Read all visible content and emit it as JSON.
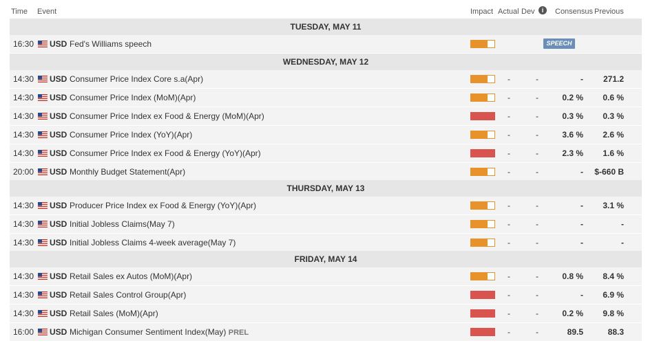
{
  "header": {
    "time": "Time",
    "event": "Event",
    "impact": "Impact",
    "actual": "Actual",
    "dev": "Dev",
    "info": "i",
    "consensus": "Consensus",
    "previous": "Previous"
  },
  "colors": {
    "medium_impact": "#e8922c",
    "high_impact": "#d9534f",
    "speech_badge": "#6a8eb5"
  },
  "days": [
    {
      "label": "TUESDAY, MAY 11"
    },
    {
      "label": "WEDNESDAY, MAY 12"
    },
    {
      "label": "THURSDAY, MAY 13"
    },
    {
      "label": "FRIDAY, MAY 14"
    }
  ],
  "rows": [
    {
      "time": "16:30",
      "currency": "USD",
      "event": "Fed's Williams speech",
      "impact": "medium",
      "badge": "SPEECH"
    },
    {
      "time": "14:30",
      "currency": "USD",
      "event": "Consumer Price Index Core s.a(Apr)",
      "impact": "medium",
      "actual": "-",
      "dev": "-",
      "consensus": "-",
      "previous": "271.2"
    },
    {
      "time": "14:30",
      "currency": "USD",
      "event": "Consumer Price Index (MoM)(Apr)",
      "impact": "medium",
      "actual": "-",
      "dev": "-",
      "consensus": "0.2 %",
      "previous": "0.6 %"
    },
    {
      "time": "14:30",
      "currency": "USD",
      "event": "Consumer Price Index ex Food & Energy (MoM)(Apr)",
      "impact": "high",
      "actual": "-",
      "dev": "-",
      "consensus": "0.3 %",
      "previous": "0.3 %"
    },
    {
      "time": "14:30",
      "currency": "USD",
      "event": "Consumer Price Index (YoY)(Apr)",
      "impact": "medium",
      "actual": "-",
      "dev": "-",
      "consensus": "3.6 %",
      "previous": "2.6 %"
    },
    {
      "time": "14:30",
      "currency": "USD",
      "event": "Consumer Price Index ex Food & Energy (YoY)(Apr)",
      "impact": "high",
      "actual": "-",
      "dev": "-",
      "consensus": "2.3 %",
      "previous": "1.6 %"
    },
    {
      "time": "20:00",
      "currency": "USD",
      "event": "Monthly Budget Statement(Apr)",
      "impact": "medium",
      "actual": "-",
      "dev": "-",
      "consensus": "-",
      "previous": "$-660 B"
    },
    {
      "time": "14:30",
      "currency": "USD",
      "event": "Producer Price Index ex Food & Energy (YoY)(Apr)",
      "impact": "medium",
      "actual": "-",
      "dev": "-",
      "consensus": "-",
      "previous": "3.1 %"
    },
    {
      "time": "14:30",
      "currency": "USD",
      "event": "Initial Jobless Claims(May 7)",
      "impact": "medium",
      "actual": "-",
      "dev": "-",
      "consensus": "-",
      "previous": "-"
    },
    {
      "time": "14:30",
      "currency": "USD",
      "event": "Initial Jobless Claims 4-week average(May 7)",
      "impact": "medium",
      "actual": "-",
      "dev": "-",
      "consensus": "-",
      "previous": "-"
    },
    {
      "time": "14:30",
      "currency": "USD",
      "event": "Retail Sales ex Autos (MoM)(Apr)",
      "impact": "medium",
      "actual": "-",
      "dev": "-",
      "consensus": "0.8 %",
      "previous": "8.4 %"
    },
    {
      "time": "14:30",
      "currency": "USD",
      "event": "Retail Sales Control Group(Apr)",
      "impact": "high",
      "actual": "-",
      "dev": "-",
      "consensus": "-",
      "previous": "6.9 %"
    },
    {
      "time": "14:30",
      "currency": "USD",
      "event": "Retail Sales (MoM)(Apr)",
      "impact": "high",
      "actual": "-",
      "dev": "-",
      "consensus": "0.2 %",
      "previous": "9.8 %"
    },
    {
      "time": "16:00",
      "currency": "USD",
      "event": "Michigan Consumer Sentiment Index(May)",
      "event_suffix": "PREL",
      "impact": "high",
      "actual": "-",
      "dev": "-",
      "consensus": "89.5",
      "previous": "88.3"
    }
  ]
}
